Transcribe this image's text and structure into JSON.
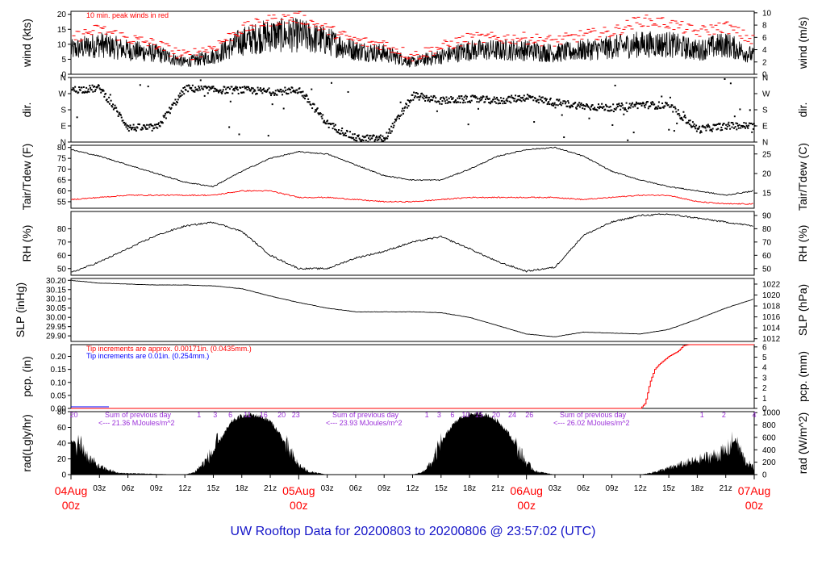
{
  "footer_title": "UW Rooftop Data for 20200803  to  20200806 @ 23:57:02  (UTC)",
  "colors": {
    "axis": "#000000",
    "peak": "#ff0000",
    "dew": "#ff0000",
    "pcp_note_red": "#ff0000",
    "pcp_note_blue": "#0000ff",
    "rad_text": "#9b30d9",
    "date_label": "#ff0000",
    "footer": "#1414c8"
  },
  "chart_data": [
    {
      "type": "line",
      "panel": "wind",
      "ylabel_left": "wind (kts)",
      "ylabel_right": "wind (m/s)",
      "left_ticks": [
        "0",
        "5",
        "10",
        "15",
        "20"
      ],
      "right_ticks": [
        "0",
        "2",
        "4",
        "6",
        "8",
        "10"
      ],
      "ylim": [
        0,
        21
      ],
      "annotation": "10 min. peak winds in red",
      "series_hint": [
        {
          "role": "wind speed",
          "color": "#000000",
          "x_hours": [
            0,
            3,
            6,
            9,
            12,
            15,
            18,
            21,
            24,
            27,
            30,
            33,
            36,
            39,
            42,
            45,
            48,
            51,
            54,
            57,
            60,
            63,
            66,
            69,
            72
          ],
          "values": [
            8,
            10,
            8,
            7,
            4,
            6,
            11,
            13,
            13,
            11,
            8,
            7,
            4,
            6,
            8,
            8,
            8,
            7,
            8,
            9,
            10,
            10,
            8,
            10,
            6
          ]
        },
        {
          "role": "10 min peak",
          "color": "#ff0000",
          "x_hours": [
            0,
            3,
            6,
            9,
            12,
            15,
            18,
            21,
            24,
            27,
            30,
            33,
            36,
            39,
            42,
            45,
            48,
            51,
            54,
            57,
            60,
            63,
            66,
            69,
            72
          ],
          "values": [
            12,
            15,
            12,
            10,
            6,
            9,
            15,
            18,
            19,
            15,
            11,
            10,
            6,
            9,
            12,
            12,
            12,
            11,
            13,
            14,
            18,
            17,
            14,
            16,
            11
          ]
        }
      ]
    },
    {
      "type": "scatter",
      "panel": "dir",
      "ylabel_left": "dir.",
      "ylabel_right": "dir.",
      "left_ticks": [
        "N",
        "E",
        "S",
        "W",
        "N"
      ],
      "right_ticks": [
        "N",
        "E",
        "S",
        "W",
        "N"
      ],
      "ylim": [
        0,
        360
      ],
      "x_hours": [
        0,
        3,
        6,
        9,
        12,
        15,
        18,
        21,
        24,
        27,
        30,
        33,
        36,
        39,
        42,
        45,
        48,
        51,
        54,
        57,
        60,
        63,
        66,
        69,
        72
      ],
      "values": [
        290,
        300,
        80,
        80,
        300,
        290,
        290,
        280,
        290,
        100,
        20,
        20,
        260,
        230,
        240,
        230,
        250,
        220,
        200,
        190,
        210,
        200,
        70,
        90,
        90
      ]
    },
    {
      "type": "line",
      "panel": "temp",
      "ylabel_left": "Tair/Tdew (F)",
      "ylabel_right": "Tair/Tdew (C)",
      "left_ticks": [
        "55",
        "60",
        "65",
        "70",
        "75",
        "80"
      ],
      "right_ticks": [
        "15",
        "20",
        "25"
      ],
      "ylim": [
        52,
        81
      ],
      "series": [
        {
          "role": "Tair",
          "color": "#000000",
          "x_hours": [
            0,
            3,
            6,
            9,
            12,
            15,
            18,
            21,
            24,
            27,
            30,
            33,
            36,
            39,
            42,
            45,
            48,
            51,
            54,
            57,
            60,
            63,
            66,
            69,
            72
          ],
          "values": [
            79,
            76,
            72,
            68,
            64,
            62,
            69,
            75,
            78,
            77,
            72,
            67,
            65,
            65,
            70,
            76,
            79,
            80,
            76,
            69,
            65,
            62,
            60,
            58,
            60
          ]
        },
        {
          "role": "Tdew",
          "color": "#ff0000",
          "x_hours": [
            0,
            3,
            6,
            9,
            12,
            15,
            18,
            21,
            24,
            27,
            30,
            33,
            36,
            39,
            42,
            45,
            48,
            51,
            54,
            57,
            60,
            63,
            66,
            69,
            72
          ],
          "values": [
            56,
            57,
            58,
            58,
            58,
            58,
            60,
            60,
            57,
            57,
            56,
            55,
            55,
            56,
            57,
            57,
            57,
            57,
            56,
            57,
            58,
            58,
            55,
            54,
            54
          ]
        }
      ]
    },
    {
      "type": "line",
      "panel": "rh",
      "ylabel_left": "RH (%)",
      "ylabel_right": "RH (%)",
      "left_ticks": [
        "50",
        "60",
        "70",
        "80"
      ],
      "right_ticks": [
        "50",
        "60",
        "70",
        "80",
        "90"
      ],
      "ylim": [
        45,
        93
      ],
      "x_hours": [
        0,
        3,
        6,
        9,
        12,
        15,
        18,
        21,
        24,
        27,
        30,
        33,
        36,
        39,
        42,
        45,
        48,
        51,
        54,
        57,
        60,
        63,
        66,
        69,
        72
      ],
      "values": [
        47,
        55,
        65,
        75,
        82,
        85,
        78,
        60,
        50,
        50,
        58,
        63,
        70,
        74,
        65,
        55,
        48,
        51,
        75,
        85,
        90,
        91,
        88,
        85,
        82
      ]
    },
    {
      "type": "line",
      "panel": "slp",
      "ylabel_left": "SLP (inHg)",
      "ylabel_right": "SLP (hPa)",
      "left_ticks": [
        "29.90",
        "29.95",
        "30.00",
        "30.05",
        "30.10",
        "30.15",
        "30.20"
      ],
      "right_ticks": [
        "1012",
        "1014",
        "1016",
        "1018",
        "1020",
        "1022"
      ],
      "ylim": [
        29.87,
        30.21
      ],
      "x_hours": [
        0,
        3,
        6,
        9,
        12,
        15,
        18,
        21,
        24,
        27,
        30,
        33,
        36,
        39,
        42,
        45,
        48,
        51,
        54,
        57,
        60,
        63,
        66,
        69,
        72
      ],
      "values": [
        30.2,
        30.185,
        30.18,
        30.175,
        30.175,
        30.17,
        30.155,
        30.115,
        30.08,
        30.05,
        30.03,
        30.03,
        30.03,
        30.025,
        30.0,
        29.955,
        29.91,
        29.895,
        29.92,
        29.915,
        29.91,
        29.935,
        29.99,
        30.05,
        30.1
      ]
    },
    {
      "type": "line",
      "panel": "pcp",
      "ylabel_left": "pcp. (in)",
      "ylabel_right": "pcp. (mm)",
      "left_ticks": [
        "0.00",
        "0.05",
        "0.10",
        "0.15",
        "0.20"
      ],
      "right_ticks": [
        "0",
        "1",
        "2",
        "3",
        "4",
        "5",
        "6"
      ],
      "ylim": [
        0,
        0.245
      ],
      "note_red": "Tip increments are approx. 0.00171in. (0.0435mm.)",
      "note_blue": "Tip increments are 0.01in. (0.254mm.)",
      "x_hours": [
        0,
        60,
        60.5,
        61,
        61.5,
        62,
        63,
        64,
        64.5,
        65,
        72
      ],
      "values": [
        0,
        0,
        0.02,
        0.1,
        0.15,
        0.17,
        0.2,
        0.22,
        0.24,
        0.245,
        0.245
      ]
    },
    {
      "type": "area",
      "panel": "rad",
      "ylabel_left": "rad(Lgly/hr)",
      "ylabel_right": "rad (W/m^2)",
      "left_ticks": [
        "0",
        "20",
        "40",
        "60",
        "80"
      ],
      "right_ticks": [
        "0",
        "200",
        "400",
        "600",
        "800",
        "1000"
      ],
      "ylim": [
        0,
        80
      ],
      "x_hours": [
        0,
        1,
        2,
        3,
        5,
        12,
        13,
        14,
        15,
        16,
        17,
        18,
        19,
        20,
        21,
        22,
        23,
        24,
        25,
        27,
        36,
        37,
        38,
        39,
        40,
        41,
        42,
        43,
        44,
        45,
        46,
        47,
        48,
        49,
        51,
        60,
        61,
        63,
        64,
        65,
        66,
        67,
        68,
        69,
        70,
        71,
        72
      ],
      "values": [
        42,
        38,
        20,
        10,
        2,
        0,
        3,
        15,
        30,
        50,
        68,
        75,
        76,
        74,
        68,
        52,
        30,
        12,
        4,
        0,
        0,
        3,
        15,
        40,
        60,
        72,
        77,
        78,
        75,
        68,
        55,
        35,
        15,
        4,
        0,
        0,
        2,
        8,
        12,
        15,
        18,
        22,
        25,
        30,
        45,
        18,
        8
      ],
      "day_sums": [
        "Sum of previous day",
        "<--- 21.36 MJoules/m^2",
        "Sum of previous day",
        "<--- 23.93 MJoules/m^2",
        "Sum of previous day",
        "<--- 26.02 MJoules/m^2"
      ],
      "top_numbers": [
        {
          "label": "20",
          "hour": 0.3
        },
        {
          "label": "1",
          "hour": 13.5
        },
        {
          "label": "3",
          "hour": 15.2
        },
        {
          "label": "6",
          "hour": 16.8
        },
        {
          "label": "11",
          "hour": 18.6
        },
        {
          "label": "16",
          "hour": 20.3
        },
        {
          "label": "20",
          "hour": 22.2
        },
        {
          "label": "23",
          "hour": 23.7
        },
        {
          "label": "1",
          "hour": 37.5
        },
        {
          "label": "3",
          "hour": 38.8
        },
        {
          "label": "6",
          "hour": 40.2
        },
        {
          "label": "10",
          "hour": 41.6
        },
        {
          "label": "15",
          "hour": 43.0
        },
        {
          "label": "20",
          "hour": 44.8
        },
        {
          "label": "24",
          "hour": 46.5
        },
        {
          "label": "26",
          "hour": 48.3
        },
        {
          "label": "1",
          "hour": 66.5
        },
        {
          "label": "2",
          "hour": 68.8
        },
        {
          "label": "4",
          "hour": 72
        }
      ]
    }
  ],
  "x_axis": {
    "hour_ticks": [
      "03z",
      "06z",
      "09z",
      "12z",
      "15z",
      "18z",
      "21z"
    ],
    "dates": [
      {
        "date": "04Aug",
        "hour": "00z"
      },
      {
        "date": "05Aug",
        "hour": "00z"
      },
      {
        "date": "06Aug",
        "hour": "00z"
      },
      {
        "date": "07Aug",
        "hour": "00z"
      }
    ]
  }
}
